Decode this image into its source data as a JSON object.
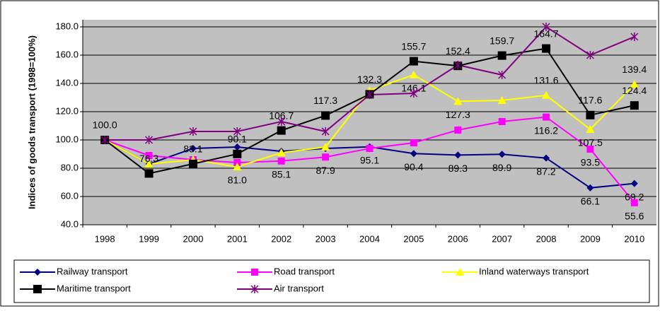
{
  "chart_data": {
    "type": "line",
    "y_label": "Indices of goods transport (1998=100%)",
    "categories": [
      "1998",
      "1999",
      "2000",
      "2001",
      "2002",
      "2003",
      "2004",
      "2005",
      "2006",
      "2007",
      "2008",
      "2009",
      "2010"
    ],
    "ylim": [
      40,
      180
    ],
    "yticks": [
      {
        "value": 40,
        "label": "40.0"
      },
      {
        "value": 60,
        "label": "60.0"
      },
      {
        "value": 80,
        "label": "80.0"
      },
      {
        "value": 100,
        "label": "100.0"
      },
      {
        "value": 120,
        "label": "120.0"
      },
      {
        "value": 140,
        "label": "140.0"
      },
      {
        "value": 160,
        "label": "160.0"
      },
      {
        "value": 180,
        "label": "180.0"
      }
    ],
    "grid": true,
    "legend": "bottom",
    "series": [
      {
        "name": "Railway transport",
        "color": "#000080",
        "marker": "diamond",
        "values": [
          100,
          83,
          94,
          95,
          92,
          94,
          95.1,
          90.4,
          89.3,
          89.9,
          87.2,
          66.1,
          69.2
        ],
        "value_labels": [
          null,
          null,
          null,
          null,
          null,
          null,
          "95.1",
          "90.4",
          "89.3",
          "89.9",
          "87.2",
          "66.1",
          "69.2"
        ]
      },
      {
        "name": "Road transport",
        "color": "#ff00ff",
        "marker": "square",
        "values": [
          100,
          89,
          86,
          84,
          85.1,
          87.9,
          94,
          98,
          107,
          113,
          116.2,
          93.5,
          55.6
        ],
        "value_labels": [
          null,
          null,
          null,
          null,
          "85.1",
          "87.9",
          null,
          null,
          null,
          null,
          "116.2",
          "93.5",
          "55.6"
        ]
      },
      {
        "name": "Inland waterways transport",
        "color": "#ffff00",
        "marker": "triangle",
        "values": [
          100,
          83,
          86,
          81.0,
          91,
          95,
          135,
          146.1,
          127.3,
          128,
          131.6,
          107.5,
          139.4
        ],
        "value_labels": [
          null,
          null,
          null,
          "81.0",
          null,
          null,
          null,
          "146.1",
          "127.3",
          null,
          "131.6",
          "107.5",
          "139.4"
        ]
      },
      {
        "name": "Maritime transport",
        "color": "#000000",
        "marker": "square",
        "values": [
          100,
          76.3,
          83.1,
          90.1,
          106.7,
          117.3,
          132.3,
          155.7,
          152.4,
          159.7,
          164.7,
          117.6,
          124.4
        ],
        "value_labels": [
          "100.0",
          "76.3",
          "83.1",
          "90.1",
          "106.7",
          "117.3",
          "132.3",
          "155.7",
          "152.4",
          "159.7",
          "164.7",
          "117.6",
          "124.4"
        ]
      },
      {
        "name": "Air transport",
        "color": "#800080",
        "marker": "star",
        "values": [
          100,
          100,
          106,
          106,
          113,
          106,
          132,
          133,
          153,
          146,
          180,
          160,
          173
        ],
        "value_labels": [
          null,
          null,
          null,
          null,
          null,
          null,
          null,
          null,
          null,
          null,
          null,
          null,
          null
        ]
      }
    ]
  }
}
